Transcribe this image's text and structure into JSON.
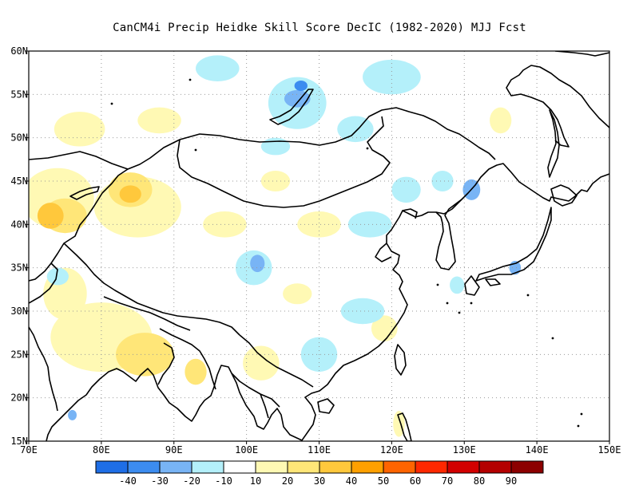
{
  "title": "CanCM4i Precip Heidke Skill Score DecIC (1982-2020) MJJ Fcst",
  "map": {
    "region": "East Asia",
    "lon_range": [
      70,
      150
    ],
    "lat_range": [
      15,
      60
    ],
    "lon_ticks": [
      {
        "value": 70,
        "label": "70E"
      },
      {
        "value": 80,
        "label": "80E"
      },
      {
        "value": 90,
        "label": "90E"
      },
      {
        "value": 100,
        "label": "100E"
      },
      {
        "value": 110,
        "label": "110E"
      },
      {
        "value": 120,
        "label": "120E"
      },
      {
        "value": 130,
        "label": "130E"
      },
      {
        "value": 140,
        "label": "140E"
      },
      {
        "value": 150,
        "label": "150E"
      }
    ],
    "lat_ticks": [
      {
        "value": 15,
        "label": "15N"
      },
      {
        "value": 20,
        "label": "20N"
      },
      {
        "value": 25,
        "label": "25N"
      },
      {
        "value": 30,
        "label": "30N"
      },
      {
        "value": 35,
        "label": "35N"
      },
      {
        "value": 40,
        "label": "40N"
      },
      {
        "value": 45,
        "label": "45N"
      },
      {
        "value": 50,
        "label": "50N"
      },
      {
        "value": 55,
        "label": "55N"
      },
      {
        "value": 60,
        "label": "60N"
      }
    ],
    "grid": "dotted"
  },
  "colorbar": {
    "colors": [
      "#1e6ee6",
      "#3c8cf0",
      "#78b4f5",
      "#b4f0fa",
      "#ffffff",
      "#fff9b4",
      "#ffe678",
      "#ffc83c",
      "#ffa000",
      "#ff6400",
      "#ff2800",
      "#d20000",
      "#b40000",
      "#8c0000"
    ],
    "labels": [
      "-40",
      "-30",
      "-20",
      "-10",
      "10",
      "20",
      "30",
      "40",
      "50",
      "60",
      "70",
      "80",
      "90"
    ]
  },
  "fields": [
    {
      "level": "10",
      "color": "#fff9b4",
      "lon": 74,
      "lat": 43,
      "rx": 5,
      "ry": 3.5
    },
    {
      "level": "10",
      "color": "#fff9b4",
      "lon": 85,
      "lat": 42,
      "rx": 6,
      "ry": 3.5
    },
    {
      "level": "10",
      "color": "#fff9b4",
      "lon": 80,
      "lat": 27,
      "rx": 7,
      "ry": 4
    },
    {
      "level": "10",
      "color": "#fff9b4",
      "lon": 75,
      "lat": 32,
      "rx": 3,
      "ry": 3
    },
    {
      "level": "10",
      "color": "#fff9b4",
      "lon": 97,
      "lat": 40,
      "rx": 3,
      "ry": 1.5
    },
    {
      "level": "10",
      "color": "#fff9b4",
      "lon": 104,
      "lat": 45,
      "rx": 2,
      "ry": 1.2
    },
    {
      "level": "10",
      "color": "#fff9b4",
      "lon": 110,
      "lat": 40,
      "rx": 3,
      "ry": 1.5
    },
    {
      "level": "10",
      "color": "#fff9b4",
      "lon": 102,
      "lat": 24,
      "rx": 2.5,
      "ry": 2
    },
    {
      "level": "10",
      "color": "#fff9b4",
      "lon": 119,
      "lat": 28,
      "rx": 1.8,
      "ry": 1.5
    },
    {
      "level": "10",
      "color": "#fff9b4",
      "lon": 77,
      "lat": 51,
      "rx": 3.5,
      "ry": 2
    },
    {
      "level": "10",
      "color": "#fff9b4",
      "lon": 88,
      "lat": 52,
      "rx": 3,
      "ry": 1.5
    },
    {
      "level": "10",
      "color": "#fff9b4",
      "lon": 107,
      "lat": 32,
      "rx": 2,
      "ry": 1.2
    },
    {
      "level": "10",
      "color": "#fff9b4",
      "lon": 121,
      "lat": 17,
      "rx": 0.8,
      "ry": 1.5
    },
    {
      "level": "10",
      "color": "#fff9b4",
      "lon": 135,
      "lat": 52,
      "rx": 1.5,
      "ry": 1.5
    },
    {
      "level": "20",
      "color": "#ffe678",
      "lon": 75,
      "lat": 41,
      "rx": 3,
      "ry": 2
    },
    {
      "level": "20",
      "color": "#ffe678",
      "lon": 84,
      "lat": 44,
      "rx": 3,
      "ry": 2
    },
    {
      "level": "20",
      "color": "#ffe678",
      "lon": 86,
      "lat": 25,
      "rx": 4,
      "ry": 2.5
    },
    {
      "level": "20",
      "color": "#ffe678",
      "lon": 93,
      "lat": 23,
      "rx": 1.5,
      "ry": 1.5
    },
    {
      "level": "30",
      "color": "#ffc83c",
      "lon": 73,
      "lat": 41,
      "rx": 1.8,
      "ry": 1.5
    },
    {
      "level": "30",
      "color": "#ffc83c",
      "lon": 84,
      "lat": 43.5,
      "rx": 1.5,
      "ry": 1
    },
    {
      "level": "-10",
      "color": "#b4f0fa",
      "lon": 107,
      "lat": 54,
      "rx": 4,
      "ry": 3
    },
    {
      "level": "-10",
      "color": "#b4f0fa",
      "lon": 96,
      "lat": 58,
      "rx": 3,
      "ry": 1.5
    },
    {
      "level": "-10",
      "color": "#b4f0fa",
      "lon": 120,
      "lat": 57,
      "rx": 4,
      "ry": 2
    },
    {
      "level": "-10",
      "color": "#b4f0fa",
      "lon": 101,
      "lat": 35,
      "rx": 2.5,
      "ry": 2
    },
    {
      "level": "-10",
      "color": "#b4f0fa",
      "lon": 117,
      "lat": 40,
      "rx": 3,
      "ry": 1.5
    },
    {
      "level": "-10",
      "color": "#b4f0fa",
      "lon": 122,
      "lat": 44,
      "rx": 2,
      "ry": 1.5
    },
    {
      "level": "-10",
      "color": "#b4f0fa",
      "lon": 116,
      "lat": 30,
      "rx": 3,
      "ry": 1.5
    },
    {
      "level": "-10",
      "color": "#b4f0fa",
      "lon": 110,
      "lat": 25,
      "rx": 2.5,
      "ry": 2
    },
    {
      "level": "-10",
      "color": "#b4f0fa",
      "lon": 115,
      "lat": 51,
      "rx": 2.5,
      "ry": 1.5
    },
    {
      "level": "-10",
      "color": "#b4f0fa",
      "lon": 104,
      "lat": 49,
      "rx": 2,
      "ry": 1
    },
    {
      "level": "-10",
      "color": "#b4f0fa",
      "lon": 129,
      "lat": 33,
      "rx": 1,
      "ry": 1
    },
    {
      "level": "-10",
      "color": "#b4f0fa",
      "lon": 74,
      "lat": 34,
      "rx": 1.5,
      "ry": 1
    },
    {
      "level": "-10",
      "color": "#b4f0fa",
      "lon": 127,
      "lat": 45,
      "rx": 1.5,
      "ry": 1.2
    },
    {
      "level": "-20",
      "color": "#78b4f5",
      "lon": 107,
      "lat": 54.5,
      "rx": 1.8,
      "ry": 1
    },
    {
      "level": "-20",
      "color": "#78b4f5",
      "lon": 101.5,
      "lat": 35.5,
      "rx": 1,
      "ry": 1
    },
    {
      "level": "-20",
      "color": "#78b4f5",
      "lon": 131,
      "lat": 44,
      "rx": 1.2,
      "ry": 1.2
    },
    {
      "level": "-20",
      "color": "#78b4f5",
      "lon": 137,
      "lat": 35,
      "rx": 0.8,
      "ry": 0.8
    },
    {
      "level": "-20",
      "color": "#78b4f5",
      "lon": 76,
      "lat": 18,
      "rx": 0.6,
      "ry": 0.6
    },
    {
      "level": "-30",
      "color": "#3c8cf0",
      "lon": 107.5,
      "lat": 56,
      "rx": 0.9,
      "ry": 0.6
    }
  ]
}
